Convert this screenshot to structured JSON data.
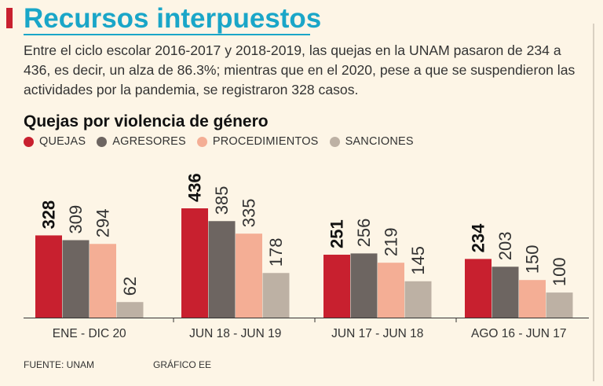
{
  "header": {
    "title": "Recursos interpuestos",
    "intro": "Entre el ciclo escolar 2016-2017 y 2018-2019, las quejas en la UNAM pasaron de 234 a 436, es decir, un alza de 86.3%; mientras que en el 2020, pese a que se suspendieron las actividades por la pandemia, se registraron 328 casos."
  },
  "colors": {
    "title": "#1aa6c8",
    "accent": "#c8202f",
    "quejas": "#c8202f",
    "agresores": "#6d6561",
    "procedimientos": "#f4ae95",
    "sanciones": "#bdb1a4",
    "axis": "#333333",
    "background": "#fdf5e6"
  },
  "footer": {
    "source": "FUENTE: UNAM",
    "credit": "GRÁFICO EE"
  },
  "chart_data": {
    "type": "bar",
    "title": "Quejas por violencia de género",
    "categories": [
      "ENE - DIC 20",
      "JUN 18 - JUN 19",
      "JUN 17 - JUN 18",
      "AGO 16 - JUN 17"
    ],
    "series": [
      {
        "name": "QUEJAS",
        "key": "quejas",
        "values": [
          328,
          436,
          251,
          234
        ]
      },
      {
        "name": "AGRESORES",
        "key": "agresores",
        "values": [
          309,
          385,
          256,
          203
        ]
      },
      {
        "name": "PROCEDIMIENTOS",
        "key": "procedimientos",
        "values": [
          294,
          335,
          219,
          150
        ]
      },
      {
        "name": "SANCIONES",
        "key": "sanciones",
        "values": [
          62,
          178,
          145,
          100
        ]
      }
    ],
    "xlabel": "",
    "ylabel": "",
    "ylim": [
      0,
      436
    ],
    "legend": "top-left",
    "grid": false
  }
}
